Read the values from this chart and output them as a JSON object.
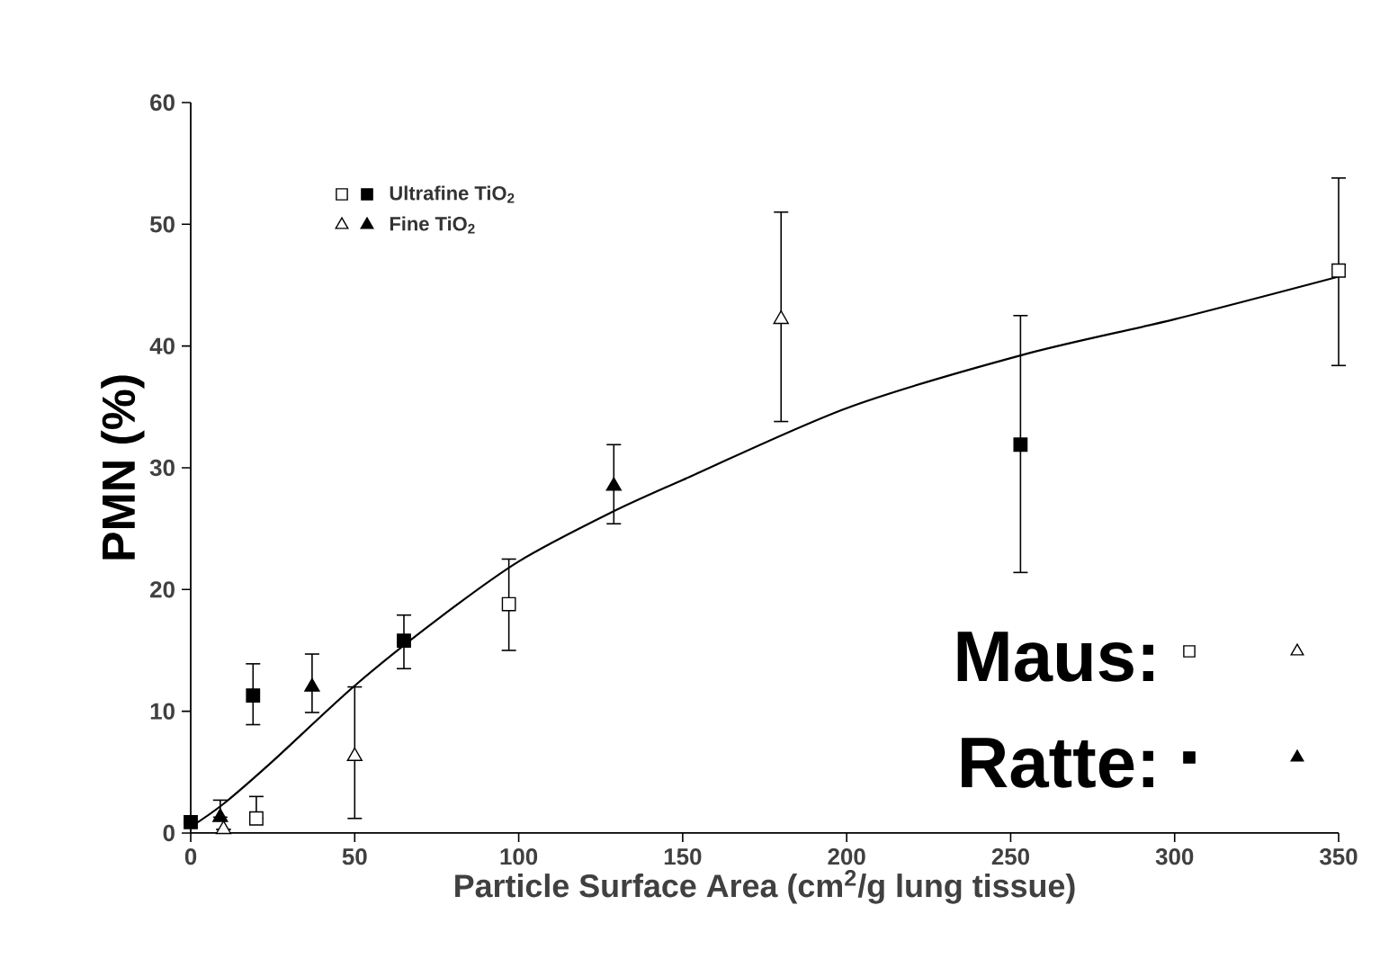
{
  "chart_data": {
    "type": "scatter",
    "xlabel": "Particle Surface Area (cm$^{2}$/g lung tissue)",
    "ylabel": "PMN (%)",
    "xlim": [
      0,
      350
    ],
    "xticks": [
      0,
      50,
      100,
      150,
      200,
      250,
      300,
      350
    ],
    "ylim": [
      0,
      60
    ],
    "yticks": [
      0,
      10,
      20,
      30,
      40,
      50,
      60
    ],
    "grid": false,
    "legend": "top left",
    "annotations": [
      "Maus:",
      "Ratte:"
    ],
    "series": [
      {
        "type": "line",
        "color": "#000000",
        "marker": "none",
        "x": [
          0,
          10,
          25,
          50,
          75,
          100,
          128,
          150,
          200,
          254,
          300,
          350
        ],
        "values": [
          0.5,
          2.4,
          5.9,
          12.1,
          17.5,
          22.3,
          26.3,
          29.0,
          34.9,
          39.3,
          42.2,
          45.7
        ]
      },
      {
        "color": "#ffffff",
        "marker": "square",
        "x": [
          20,
          97,
          350
        ],
        "values": [
          1.2,
          18.8,
          46.2
        ],
        "errors": [
          [
            1.2,
            3
          ],
          [
            15,
            22.5
          ],
          [
            38.4,
            53.8
          ]
        ]
      },
      {
        "name": "Ultrafine TiO$_{2}$",
        "color": "#000000",
        "marker": "square",
        "x": [
          0,
          19,
          65,
          253
        ],
        "values": [
          0.9,
          11.3,
          15.8,
          31.9
        ],
        "errors": [
          null,
          [
            8.9,
            13.9
          ],
          [
            13.5,
            17.9
          ],
          [
            21.4,
            42.5
          ]
        ]
      },
      {
        "color": "#ffffff",
        "marker": "triangle",
        "x": [
          10,
          50,
          180
        ],
        "values": [
          0.3,
          6.3,
          42.2
        ],
        "errors": [
          null,
          [
            1.2,
            12
          ],
          [
            33.8,
            51
          ]
        ]
      },
      {
        "name": "Fine TiO$_{2}$",
        "color": "#000000",
        "marker": "triangle",
        "x": [
          9,
          37,
          129
        ],
        "values": [
          1.3,
          12,
          28.5
        ],
        "errors": [
          [
            1.3,
            2.7
          ],
          [
            9.9,
            14.7
          ],
          [
            25.4,
            31.9
          ]
        ]
      }
    ]
  }
}
